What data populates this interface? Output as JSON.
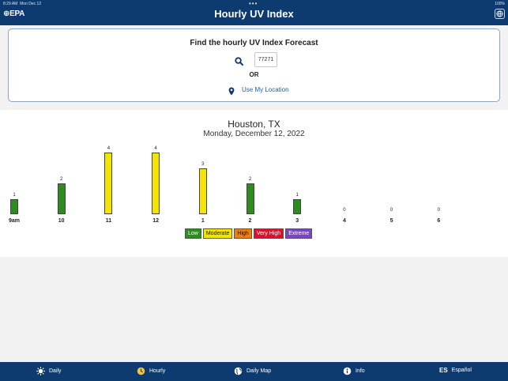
{
  "status_bar": {
    "time": "8:29 AM",
    "date": "Mon Dec 12",
    "dots": "•••",
    "right": "100%"
  },
  "header": {
    "logo": "EPA",
    "title": "Hourly UV Index",
    "globe_icon": "globe-icon"
  },
  "search": {
    "heading": "Find the hourly UV Index Forecast",
    "zip_value": "77271",
    "or": "OR",
    "use_location": "Use My Location"
  },
  "forecast": {
    "city": "Houston, TX",
    "date": "Monday, December 12, 2022"
  },
  "chart_data": {
    "type": "bar",
    "categories": [
      "9am",
      "10",
      "11",
      "12",
      "1",
      "2",
      "3",
      "4",
      "5",
      "6"
    ],
    "values": [
      1,
      2,
      4,
      4,
      3,
      2,
      1,
      0,
      0,
      0
    ],
    "colors": [
      "#2e8b1e",
      "#2e8b1e",
      "#f5e400",
      "#f5e400",
      "#f5e400",
      "#2e8b1e",
      "#2e8b1e",
      "#2e8b1e",
      "#2e8b1e",
      "#2e8b1e"
    ],
    "ylim": [
      0,
      4
    ]
  },
  "legend": [
    {
      "label": "Low",
      "bg": "#2e8b1e",
      "fg": "#ffffff"
    },
    {
      "label": "Moderate",
      "bg": "#f5e400",
      "fg": "#111111"
    },
    {
      "label": "High",
      "bg": "#f07d0a",
      "fg": "#111111"
    },
    {
      "label": "Very High",
      "bg": "#d4142a",
      "fg": "#ffffff"
    },
    {
      "label": "Extreme",
      "bg": "#7b45c2",
      "fg": "#ffffff"
    }
  ],
  "nav": [
    {
      "label": "Daily",
      "icon": "sun-icon"
    },
    {
      "label": "Hourly",
      "icon": "clock-icon"
    },
    {
      "label": "Daily Map",
      "icon": "globe-icon"
    },
    {
      "label": "Info",
      "icon": "info-icon"
    },
    {
      "label": "Español",
      "icon": "es-icon",
      "icon_text": "ES"
    }
  ]
}
